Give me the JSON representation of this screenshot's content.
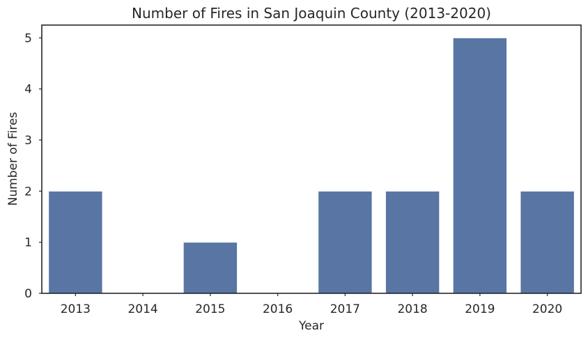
{
  "chart_data": {
    "type": "bar",
    "title": "Number of Fires in San Joaquin County (2013-2020)",
    "xlabel": "Year",
    "ylabel": "Number of Fires",
    "categories": [
      "2013",
      "2014",
      "2015",
      "2016",
      "2017",
      "2018",
      "2019",
      "2020"
    ],
    "values": [
      2,
      0,
      1,
      0,
      2,
      2,
      5,
      2
    ],
    "yticks": [
      "0",
      "1",
      "2",
      "3",
      "4",
      "5"
    ],
    "ylim": [
      0,
      5.25
    ],
    "grid": false,
    "bar_color": "#5875a4",
    "bar_edge_color": "#ffffff"
  }
}
